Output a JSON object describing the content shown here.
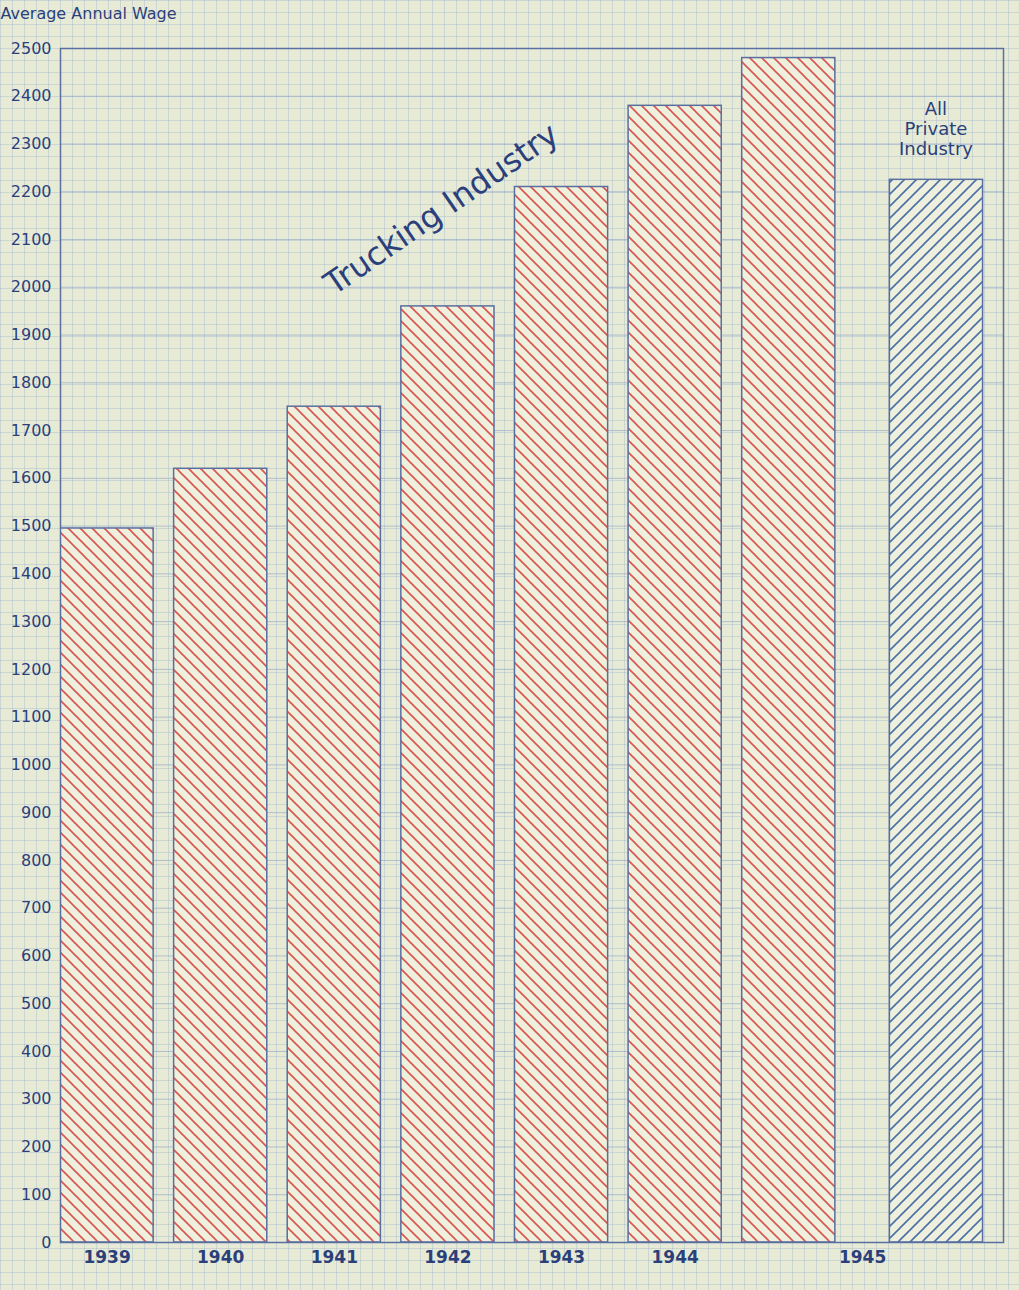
{
  "chart_data": {
    "type": "bar",
    "y_label": "Average Annual Wage",
    "categories": [
      "1939",
      "1940",
      "1941",
      "1942",
      "1943",
      "1944",
      "1945"
    ],
    "series": [
      {
        "name": "Trucking Industry",
        "color": "#d9534f",
        "values": [
          1495,
          1620,
          1750,
          1960,
          2210,
          2380,
          2480
        ]
      },
      {
        "name": "All Private Industry",
        "color": "#4a6fa5",
        "values": [
          null,
          null,
          null,
          null,
          null,
          null,
          2225
        ]
      }
    ],
    "ylim": [
      0,
      2500
    ],
    "yticks": [
      0,
      100,
      200,
      300,
      400,
      500,
      600,
      700,
      800,
      900,
      1000,
      1100,
      1200,
      1300,
      1400,
      1500,
      1600,
      1700,
      1800,
      1900,
      2000,
      2100,
      2200,
      2300,
      2400,
      2500
    ],
    "grid": true
  }
}
